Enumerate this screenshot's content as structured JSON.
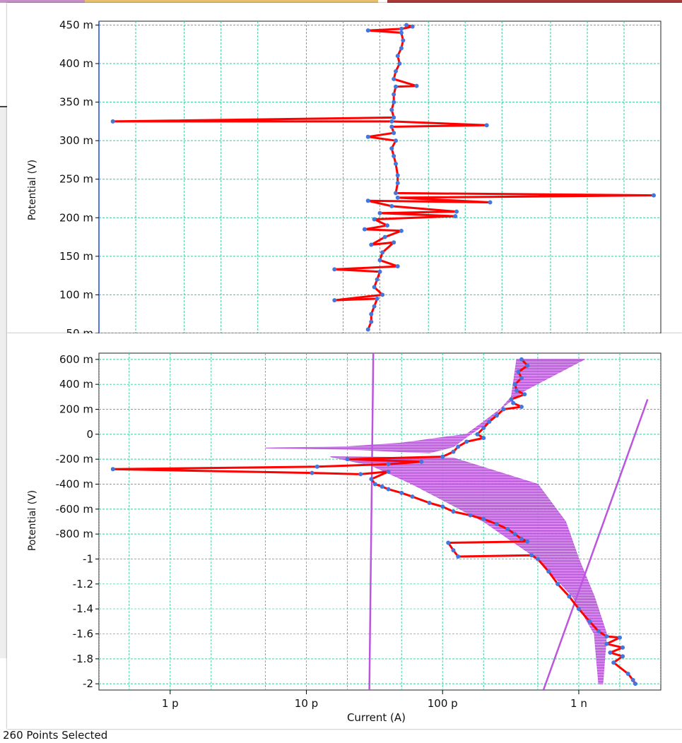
{
  "status_text": "260 Points Selected",
  "colors": {
    "grid": "#33cc99",
    "data_line": "#ff0000",
    "data_point": "#4477dd",
    "fit": "#bb55dd",
    "axis": "#000000",
    "top_strip": [
      "#c890c8",
      "#e8c070",
      "#a83a3a"
    ]
  },
  "chart_data": [
    {
      "type": "line",
      "xscale": "log",
      "xlim": [
        1e-13,
        4e-09
      ],
      "ylim": [
        0.05,
        0.455
      ],
      "ylabel": "Potential (V)",
      "xlabel": "",
      "y_ticks": [
        {
          "value": 0.05,
          "label": "50 m"
        },
        {
          "value": 0.1,
          "label": "100 m"
        },
        {
          "value": 0.15,
          "label": "150 m"
        },
        {
          "value": 0.2,
          "label": "200 m"
        },
        {
          "value": 0.25,
          "label": "250 m"
        },
        {
          "value": 0.3,
          "label": "300 m"
        },
        {
          "value": 0.35,
          "label": "350 m"
        },
        {
          "value": 0.4,
          "label": "400 m"
        },
        {
          "value": 0.45,
          "label": "450 m"
        }
      ],
      "series": [
        {
          "points": [
            [
              3.3e-11,
              0.45
            ],
            [
              3.7e-11,
              0.448
            ],
            [
              3e-11,
              0.445
            ],
            [
              1.6e-11,
              0.443
            ],
            [
              3e-11,
              0.44
            ],
            [
              3.1e-11,
              0.43
            ],
            [
              3e-11,
              0.42
            ],
            [
              2.8e-11,
              0.41
            ],
            [
              2.9e-11,
              0.4
            ],
            [
              2.7e-11,
              0.39
            ],
            [
              2.6e-11,
              0.38
            ],
            [
              4e-11,
              0.371
            ],
            [
              2.7e-11,
              0.37
            ],
            [
              2.6e-11,
              0.36
            ],
            [
              2.6e-11,
              0.35
            ],
            [
              2.5e-11,
              0.34
            ],
            [
              2.6e-11,
              0.33
            ],
            [
              1.3e-13,
              0.325
            ],
            [
              2.5e-11,
              0.325
            ],
            [
              1.5e-10,
              0.32
            ],
            [
              2.5e-11,
              0.318
            ],
            [
              2.6e-11,
              0.31
            ],
            [
              1.6e-11,
              0.305
            ],
            [
              2.7e-11,
              0.3
            ],
            [
              2.5e-11,
              0.29
            ],
            [
              2.6e-11,
              0.28
            ],
            [
              2.7e-11,
              0.27
            ],
            [
              2.8e-11,
              0.255
            ],
            [
              2.8e-11,
              0.245
            ],
            [
              2.7e-11,
              0.232
            ],
            [
              3.5e-09,
              0.229
            ],
            [
              2.8e-11,
              0.226
            ],
            [
              1.6e-10,
              0.22
            ],
            [
              1.6e-11,
              0.222
            ],
            [
              2.5e-11,
              0.215
            ],
            [
              8.5e-11,
              0.208
            ],
            [
              2e-11,
              0.206
            ],
            [
              8.3e-11,
              0.202
            ],
            [
              1.8e-11,
              0.198
            ],
            [
              2.3e-11,
              0.19
            ],
            [
              1.5e-11,
              0.185
            ],
            [
              3e-11,
              0.183
            ],
            [
              2.2e-11,
              0.175
            ],
            [
              1.7e-11,
              0.165
            ],
            [
              2.6e-11,
              0.168
            ],
            [
              2.1e-11,
              0.155
            ],
            [
              2e-11,
              0.145
            ],
            [
              2.8e-11,
              0.137
            ],
            [
              8.5e-12,
              0.133
            ],
            [
              2e-11,
              0.13
            ],
            [
              1.9e-11,
              0.12
            ],
            [
              1.8e-11,
              0.11
            ],
            [
              2.1e-11,
              0.1
            ],
            [
              8.5e-12,
              0.093
            ],
            [
              1.9e-11,
              0.095
            ],
            [
              1.8e-11,
              0.085
            ],
            [
              1.7e-11,
              0.075
            ],
            [
              1.7e-11,
              0.065
            ],
            [
              1.6e-11,
              0.055
            ]
          ]
        }
      ]
    },
    {
      "type": "line",
      "xscale": "log",
      "xlim": [
        3e-13,
        4e-09
      ],
      "ylim": [
        -2.05,
        0.65
      ],
      "xlabel": "Current (A)",
      "ylabel": "Potential (V)",
      "x_ticks": [
        {
          "value": 1e-12,
          "label": "1 p"
        },
        {
          "value": 1e-11,
          "label": "10 p"
        },
        {
          "value": 1e-10,
          "label": "100 p"
        },
        {
          "value": 1e-09,
          "label": "1 n"
        }
      ],
      "y_ticks": [
        {
          "value": 0.6,
          "label": "600 m"
        },
        {
          "value": 0.4,
          "label": "400 m"
        },
        {
          "value": 0.2,
          "label": "200 m"
        },
        {
          "value": 0,
          "label": "0"
        },
        {
          "value": -0.2,
          "label": "-200 m"
        },
        {
          "value": -0.4,
          "label": "-400 m"
        },
        {
          "value": -0.6,
          "label": "-600 m"
        },
        {
          "value": -0.8,
          "label": "-800 m"
        },
        {
          "value": -1,
          "label": "-1"
        },
        {
          "value": -1.2,
          "label": "-1.2"
        },
        {
          "value": -1.4,
          "label": "-1.4"
        },
        {
          "value": -1.6,
          "label": "-1.6"
        },
        {
          "value": -1.8,
          "label": "-1.8"
        },
        {
          "value": -2,
          "label": "-2"
        }
      ],
      "series": [
        {
          "points": [
            [
              3.8e-10,
              0.6
            ],
            [
              4.2e-10,
              0.55
            ],
            [
              3.6e-10,
              0.5
            ],
            [
              3.8e-10,
              0.45
            ],
            [
              3.4e-10,
              0.4
            ],
            [
              3.5e-10,
              0.35
            ],
            [
              4e-10,
              0.32
            ],
            [
              3.2e-10,
              0.28
            ],
            [
              3.3e-10,
              0.25
            ],
            [
              3.8e-10,
              0.22
            ],
            [
              2.8e-10,
              0.2
            ],
            [
              2.5e-10,
              0.15
            ],
            [
              2.2e-10,
              0.1
            ],
            [
              2e-10,
              0.05
            ],
            [
              1.8e-10,
              0.0
            ],
            [
              2e-10,
              -0.03
            ],
            [
              1.5e-10,
              -0.06
            ],
            [
              1.3e-10,
              -0.1
            ],
            [
              1.2e-10,
              -0.14
            ],
            [
              1e-10,
              -0.18
            ],
            [
              2e-11,
              -0.2
            ],
            [
              7e-11,
              -0.22
            ],
            [
              4e-11,
              -0.24
            ],
            [
              1.2e-11,
              -0.26
            ],
            [
              3.8e-13,
              -0.28
            ],
            [
              1.1e-11,
              -0.31
            ],
            [
              2.5e-11,
              -0.32
            ],
            [
              4e-11,
              -0.3
            ],
            [
              3e-11,
              -0.36
            ],
            [
              3.2e-11,
              -0.4
            ],
            [
              3.6e-11,
              -0.42
            ],
            [
              4e-11,
              -0.44
            ],
            [
              5e-11,
              -0.47
            ],
            [
              6e-11,
              -0.5
            ],
            [
              8e-11,
              -0.55
            ],
            [
              1e-10,
              -0.58
            ],
            [
              1.2e-10,
              -0.62
            ],
            [
              1.6e-10,
              -0.65
            ],
            [
              2e-10,
              -0.68
            ],
            [
              2.5e-10,
              -0.72
            ],
            [
              3e-10,
              -0.76
            ],
            [
              3.4e-10,
              -0.8
            ],
            [
              3.8e-10,
              -0.84
            ],
            [
              4.2e-10,
              -0.86
            ],
            [
              1.1e-10,
              -0.87
            ],
            [
              1.2e-10,
              -0.93
            ],
            [
              1.3e-10,
              -0.98
            ],
            [
              4.5e-10,
              -0.97
            ],
            [
              5e-10,
              -1.0
            ],
            [
              6e-10,
              -1.1
            ],
            [
              7e-10,
              -1.2
            ],
            [
              8.5e-10,
              -1.3
            ],
            [
              1e-09,
              -1.4
            ],
            [
              1.2e-09,
              -1.5
            ],
            [
              1.4e-09,
              -1.58
            ],
            [
              1.6e-09,
              -1.62
            ],
            [
              2e-09,
              -1.63
            ],
            [
              1.6e-09,
              -1.68
            ],
            [
              2.1e-09,
              -1.71
            ],
            [
              1.7e-09,
              -1.75
            ],
            [
              2.1e-09,
              -1.78
            ],
            [
              1.8e-09,
              -1.83
            ],
            [
              2.3e-09,
              -1.92
            ],
            [
              2.5e-09,
              -1.97
            ],
            [
              2.6e-09,
              -2.0
            ]
          ]
        }
      ]
    }
  ]
}
